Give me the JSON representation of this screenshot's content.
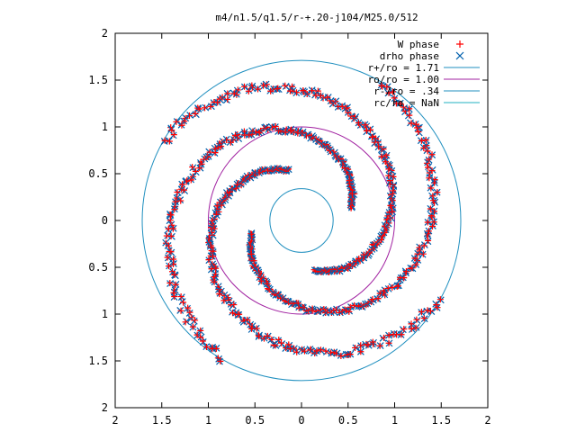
{
  "chart_data": {
    "type": "scatter",
    "title": "m4/n1.5/q1.5/r-+.20-j104/M25.0/512",
    "xlim": [
      -2,
      2
    ],
    "ylim": [
      -2,
      2
    ],
    "x_ticks": [
      -2,
      -1.5,
      -1,
      -0.5,
      0,
      0.5,
      1,
      1.5,
      2
    ],
    "y_ticks": [
      -2,
      -1.5,
      -1,
      -0.5,
      0,
      0.5,
      1,
      1.5,
      2
    ],
    "x_tick_labels": [
      "2",
      "1.5",
      "1",
      "0.5",
      "0",
      "0.5",
      "1",
      "1.5",
      "2"
    ],
    "y_tick_labels": [
      "2",
      "1.5",
      "1",
      "0.5",
      "0",
      "0.5",
      "1",
      "1.5",
      "2"
    ],
    "grid": false,
    "legend_position": "top-right",
    "series": [
      {
        "name": "W phase",
        "kind": "points",
        "marker": "plus",
        "color": "#ff0000",
        "description_of_shape": "four trailing spiral arms between r = 0.4 and r = 1.7"
      },
      {
        "name": "drho phase",
        "kind": "points",
        "marker": "cross",
        "color": "#0060ad",
        "description_of_shape": "four trailing spiral arms overlapping the W phase points"
      },
      {
        "name": "r+/ro = 1.71",
        "kind": "circle",
        "radius": 1.71,
        "color": "#1f8fbf"
      },
      {
        "name": "ro/ro = 1.00",
        "kind": "circle",
        "radius": 1.0,
        "color": "#a020a0"
      },
      {
        "name": "r-/ro = .34",
        "kind": "circle",
        "radius": 0.34,
        "color": "#1f8fbf"
      },
      {
        "name": "rc/ro = NaN",
        "kind": "circle",
        "radius": null,
        "color": "#20b0c0"
      }
    ],
    "arms": [
      {
        "r0": 0.55,
        "r1": 1.7,
        "theta_start_deg": -75,
        "sweep_deg": 225
      },
      {
        "r0": 0.55,
        "r1": 1.7,
        "theta_start_deg": 15,
        "sweep_deg": 225
      },
      {
        "r0": 0.55,
        "r1": 1.7,
        "theta_start_deg": 105,
        "sweep_deg": 225
      },
      {
        "r0": 0.55,
        "r1": 1.7,
        "theta_start_deg": 195,
        "sweep_deg": 225
      }
    ]
  }
}
